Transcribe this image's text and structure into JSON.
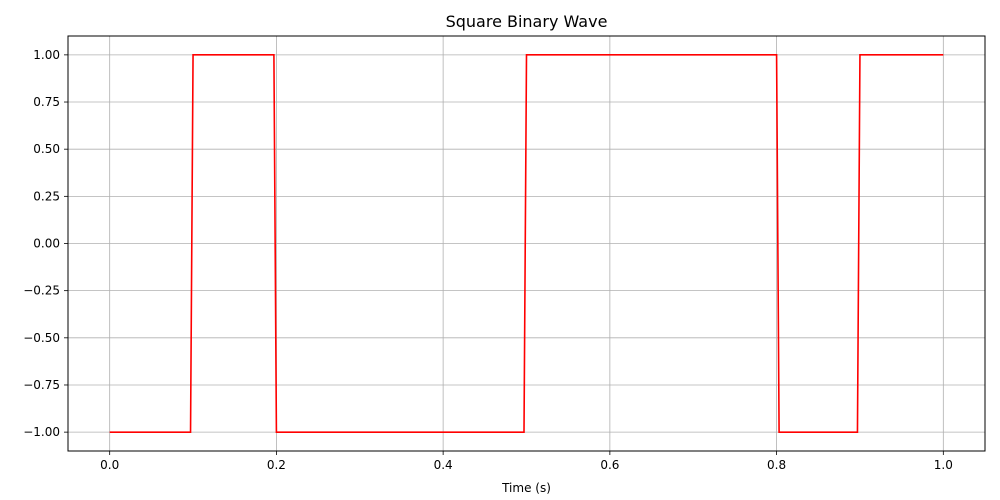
{
  "chart_data": {
    "type": "line",
    "title": "Square Binary Wave",
    "xlabel": "Time (s)",
    "ylabel": "",
    "xlim": [
      -0.05,
      1.05
    ],
    "ylim": [
      -1.1,
      1.1
    ],
    "x_ticks": [
      0.0,
      0.2,
      0.4,
      0.6,
      0.8,
      1.0
    ],
    "x_tick_labels": [
      "0.0",
      "0.2",
      "0.4",
      "0.6",
      "0.8",
      "1.0"
    ],
    "y_ticks": [
      1.0,
      0.75,
      0.5,
      0.25,
      0.0,
      -0.25,
      -0.5,
      -0.75,
      -1.0
    ],
    "y_tick_labels": [
      "1.00",
      "0.75",
      "0.50",
      "0.25",
      "0.00",
      "−0.25",
      "−0.50",
      "−0.75",
      "−1.00"
    ],
    "grid": true,
    "series": [
      {
        "color": "#ff0000",
        "x": [
          0.0,
          0.097,
          0.1,
          0.197,
          0.2,
          0.497,
          0.5,
          0.8,
          0.803,
          0.897,
          0.9,
          1.0
        ],
        "y": [
          -1,
          -1,
          1,
          1,
          -1,
          -1,
          1,
          1,
          -1,
          -1,
          1,
          1
        ]
      }
    ]
  }
}
